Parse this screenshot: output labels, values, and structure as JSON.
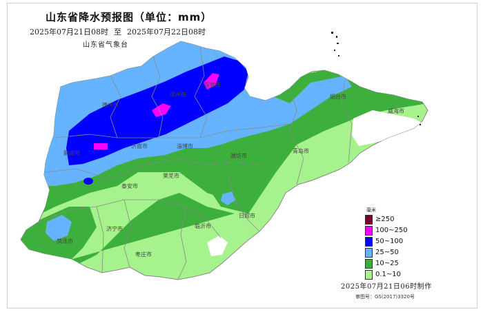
{
  "map": {
    "title": "山东省降水预报图（单位：mm）",
    "period": {
      "start": "2025年07月21日08时",
      "separator": "至",
      "end": "2025年07月22日08时"
    },
    "agency": "山东省气象台",
    "issued": "2025年07月21日06时制作",
    "approval_number": "审图号：GS(2017)3320号",
    "colors": {
      "r250": "#7a0033",
      "r100": "#ff00ff",
      "r50": "#0000ff",
      "r25": "#66b3ff",
      "r10": "#3daf3d",
      "r01": "#a6f28c",
      "none": "#ffffff"
    }
  },
  "legend": {
    "unit": "毫米",
    "items": [
      {
        "label": "≥250",
        "color": "#7a0033"
      },
      {
        "label": "100~250",
        "color": "#ff00ff"
      },
      {
        "label": "50~100",
        "color": "#0000ff"
      },
      {
        "label": "25~50",
        "color": "#66b3ff"
      },
      {
        "label": "10~25",
        "color": "#3daf3d"
      },
      {
        "label": "0.1~10",
        "color": "#a6f28c"
      }
    ]
  },
  "cities": {
    "dongying": "东营市",
    "binzhou": "滨州市",
    "dezhou": "德州市",
    "jinan": "济南市",
    "zibo": "淄博市",
    "weifang": "潍坊市",
    "yantai": "烟台市",
    "weihai": "威海市",
    "qingdao": "青岛市",
    "liaocheng": "聊城市",
    "taian": "泰安市",
    "laiwu": "莱芜市",
    "jining": "济宁市",
    "heze": "菏泽市",
    "linyi": "临沂市",
    "rizhao": "日照市",
    "zaozhuang": "枣庄市"
  }
}
